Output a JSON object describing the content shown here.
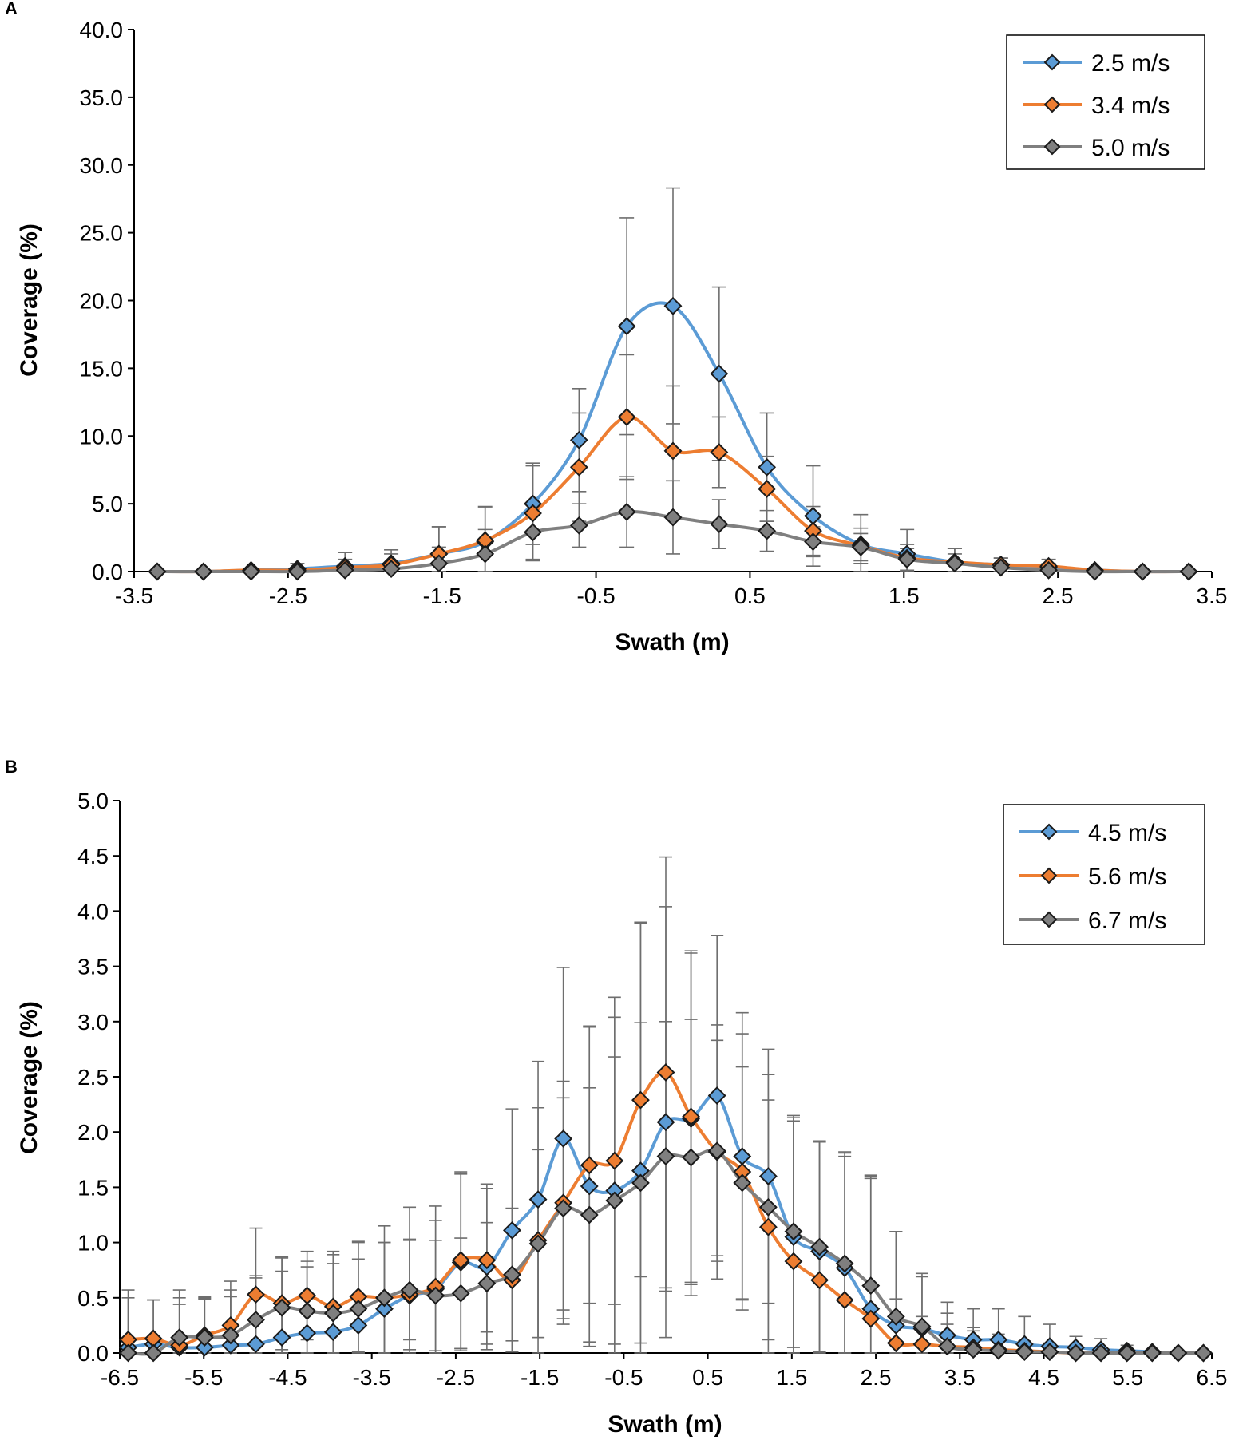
{
  "chart_data": [
    {
      "panel": "A",
      "type": "line",
      "xlabel": "Swath (m)",
      "ylabel": "Coverage (%)",
      "xlim": [
        -3.5,
        3.5
      ],
      "ylim": [
        0,
        40
      ],
      "xticks": [
        "-3.5",
        "-2.5",
        "-1.5",
        "-0.5",
        "0.5",
        "1.5",
        "2.5",
        "3.5"
      ],
      "yticks": [
        "0.0",
        "5.0",
        "10.0",
        "15.0",
        "20.0",
        "25.0",
        "30.0",
        "35.0",
        "40.0"
      ],
      "legend_position": "top-right",
      "x": [
        -3.35,
        -3.05,
        -2.74,
        -2.44,
        -2.13,
        -1.83,
        -1.52,
        -1.22,
        -0.91,
        -0.61,
        -0.3,
        0.0,
        0.3,
        0.61,
        0.91,
        1.22,
        1.52,
        1.83,
        2.13,
        2.44,
        2.74,
        3.05,
        3.35
      ],
      "series": [
        {
          "name": "2.5 m/s",
          "color": "#5b9bd5",
          "values": [
            0.0,
            0.0,
            0.1,
            0.2,
            0.4,
            0.6,
            1.3,
            2.2,
            5.0,
            9.7,
            18.1,
            19.6,
            14.6,
            7.7,
            4.1,
            2.0,
            1.3,
            0.7,
            0.5,
            0.3,
            0.1,
            0.0,
            0.0
          ],
          "errors": [
            0.0,
            0.0,
            0.0,
            0.4,
            1.0,
            1.0,
            2.0,
            2.5,
            3.0,
            3.8,
            8.0,
            8.7,
            6.4,
            4.0,
            3.7,
            2.2,
            1.8,
            1.0,
            0.5,
            0.3,
            0.0,
            0.0,
            0.0
          ]
        },
        {
          "name": "3.4 m/s",
          "color": "#ed7d31",
          "values": [
            0.0,
            0.0,
            0.1,
            0.1,
            0.3,
            0.5,
            1.3,
            2.3,
            4.3,
            7.7,
            11.4,
            8.9,
            8.8,
            6.1,
            3.0,
            1.9,
            1.0,
            0.7,
            0.5,
            0.4,
            0.1,
            0.0,
            0.0
          ],
          "errors": [
            0.0,
            0.0,
            0.0,
            0.2,
            0.6,
            0.8,
            2.0,
            2.5,
            3.5,
            4.0,
            4.6,
            4.8,
            2.6,
            2.4,
            1.8,
            1.3,
            1.0,
            1.0,
            0.5,
            0.5,
            0.0,
            0.0,
            0.0
          ]
        },
        {
          "name": "5.0 m/s",
          "color": "#7f7f7f",
          "values": [
            0.0,
            0.0,
            0.0,
            0.0,
            0.1,
            0.2,
            0.6,
            1.3,
            2.9,
            3.4,
            4.4,
            4.0,
            3.5,
            3.0,
            2.2,
            1.8,
            0.9,
            0.6,
            0.3,
            0.1,
            0.0,
            0.0,
            0.0
          ],
          "errors": [
            0.0,
            0.0,
            0.0,
            0.0,
            0.2,
            0.3,
            1.2,
            1.8,
            2.0,
            1.6,
            2.6,
            2.7,
            1.8,
            1.5,
            1.1,
            1.0,
            0.8,
            0.7,
            0.3,
            0.1,
            0.0,
            0.0,
            0.0
          ]
        }
      ]
    },
    {
      "panel": "B",
      "type": "line",
      "xlabel": "Swath (m)",
      "ylabel": "Coverage (%)",
      "xlim": [
        -6.5,
        6.5
      ],
      "ylim": [
        0,
        5
      ],
      "xticks": [
        "-6.5",
        "-5.5",
        "-4.5",
        "-3.5",
        "-2.5",
        "-1.5",
        "-0.5",
        "0.5",
        "1.5",
        "2.5",
        "3.5",
        "4.5",
        "5.5",
        "6.5"
      ],
      "yticks": [
        "0.0",
        "0.5",
        "1.0",
        "1.5",
        "2.0",
        "2.5",
        "3.0",
        "3.5",
        "4.0",
        "4.5",
        "5.0"
      ],
      "legend_position": "top-right",
      "x": [
        -6.4,
        -6.1,
        -5.79,
        -5.49,
        -5.18,
        -4.88,
        -4.57,
        -4.27,
        -3.96,
        -3.66,
        -3.35,
        -3.05,
        -2.74,
        -2.44,
        -2.13,
        -1.83,
        -1.52,
        -1.22,
        -0.91,
        -0.61,
        -0.3,
        0.0,
        0.3,
        0.61,
        0.91,
        1.22,
        1.52,
        1.83,
        2.13,
        2.44,
        2.74,
        3.05,
        3.35,
        3.66,
        3.96,
        4.27,
        4.57,
        4.88,
        5.18,
        5.49,
        5.79,
        6.1,
        6.4
      ],
      "series": [
        {
          "name": "4.5 m/s",
          "color": "#5b9bd5",
          "values": [
            0.05,
            0.08,
            0.05,
            0.05,
            0.07,
            0.08,
            0.14,
            0.18,
            0.19,
            0.25,
            0.4,
            0.52,
            0.58,
            0.82,
            0.78,
            1.11,
            1.39,
            1.94,
            1.51,
            1.47,
            1.65,
            2.09,
            2.12,
            2.33,
            1.78,
            1.6,
            1.05,
            0.92,
            0.77,
            0.4,
            0.25,
            0.22,
            0.16,
            0.12,
            0.12,
            0.08,
            0.06,
            0.05,
            0.03,
            0.02,
            0.01,
            0.0,
            0.0
          ],
          "errors": [
            0.45,
            0.4,
            0.45,
            0.45,
            0.5,
            0.6,
            0.6,
            0.65,
            0.7,
            0.75,
            0.75,
            0.8,
            0.75,
            0.8,
            0.75,
            1.1,
            1.25,
            1.55,
            1.45,
            1.75,
            2.25,
            1.95,
            1.5,
            1.45,
            1.3,
            1.15,
            1.05,
            1.0,
            1.05,
            1.2,
            0.85,
            0.5,
            0.3,
            0.28,
            0.28,
            0.25,
            0.2,
            0.1,
            0.1,
            0.05,
            0.0,
            0.0,
            0.0
          ]
        },
        {
          "name": "5.6 m/s",
          "color": "#ed7d31",
          "values": [
            0.12,
            0.13,
            0.07,
            0.16,
            0.25,
            0.53,
            0.45,
            0.52,
            0.42,
            0.51,
            0.5,
            0.53,
            0.6,
            0.84,
            0.84,
            0.66,
            1.02,
            1.36,
            1.7,
            1.74,
            2.29,
            2.54,
            2.14,
            1.82,
            1.64,
            1.14,
            0.83,
            0.66,
            0.48,
            0.31,
            0.09,
            0.08,
            0.06,
            0.05,
            0.03,
            0.02,
            0.01,
            0.0,
            0.0,
            0.0,
            0.0,
            0.0,
            0.0
          ],
          "errors": [
            0.45,
            0.35,
            0.5,
            0.35,
            0.4,
            0.6,
            0.42,
            0.4,
            0.5,
            0.5,
            0.5,
            0.5,
            0.6,
            0.8,
            0.65,
            0.65,
            1.2,
            1.1,
            1.25,
            1.3,
            1.6,
            1.95,
            1.5,
            1.15,
            1.25,
            1.15,
            1.3,
            1.25,
            1.3,
            1.3,
            0.4,
            0.25,
            0.2,
            0.15,
            0.1,
            0.05,
            0.0,
            0.0,
            0.0,
            0.0,
            0.0,
            0.0,
            0.0
          ]
        },
        {
          "name": "6.7 m/s",
          "color": "#7f7f7f",
          "values": [
            0.0,
            0.0,
            0.14,
            0.14,
            0.16,
            0.3,
            0.41,
            0.38,
            0.36,
            0.4,
            0.5,
            0.57,
            0.52,
            0.54,
            0.63,
            0.71,
            0.99,
            1.31,
            1.25,
            1.38,
            1.54,
            1.78,
            1.77,
            1.83,
            1.54,
            1.32,
            1.1,
            0.96,
            0.81,
            0.61,
            0.33,
            0.24,
            0.06,
            0.03,
            0.02,
            0.01,
            0.01,
            0.0,
            0.0,
            0.0,
            0.0,
            0.0,
            0.0
          ],
          "errors": [
            0.0,
            0.0,
            0.3,
            0.35,
            0.35,
            0.4,
            0.45,
            0.4,
            0.45,
            0.45,
            0.5,
            0.45,
            0.5,
            0.5,
            0.55,
            0.6,
            0.85,
            1.0,
            1.15,
            1.3,
            1.45,
            1.22,
            1.25,
            1.0,
            1.05,
            1.2,
            1.05,
            0.95,
            1.0,
            0.97,
            0.77,
            0.45,
            0.3,
            0.2,
            0.15,
            0.1,
            0.08,
            0.05,
            0.05,
            0.03,
            0.0,
            0.0,
            0.0
          ]
        }
      ]
    }
  ]
}
